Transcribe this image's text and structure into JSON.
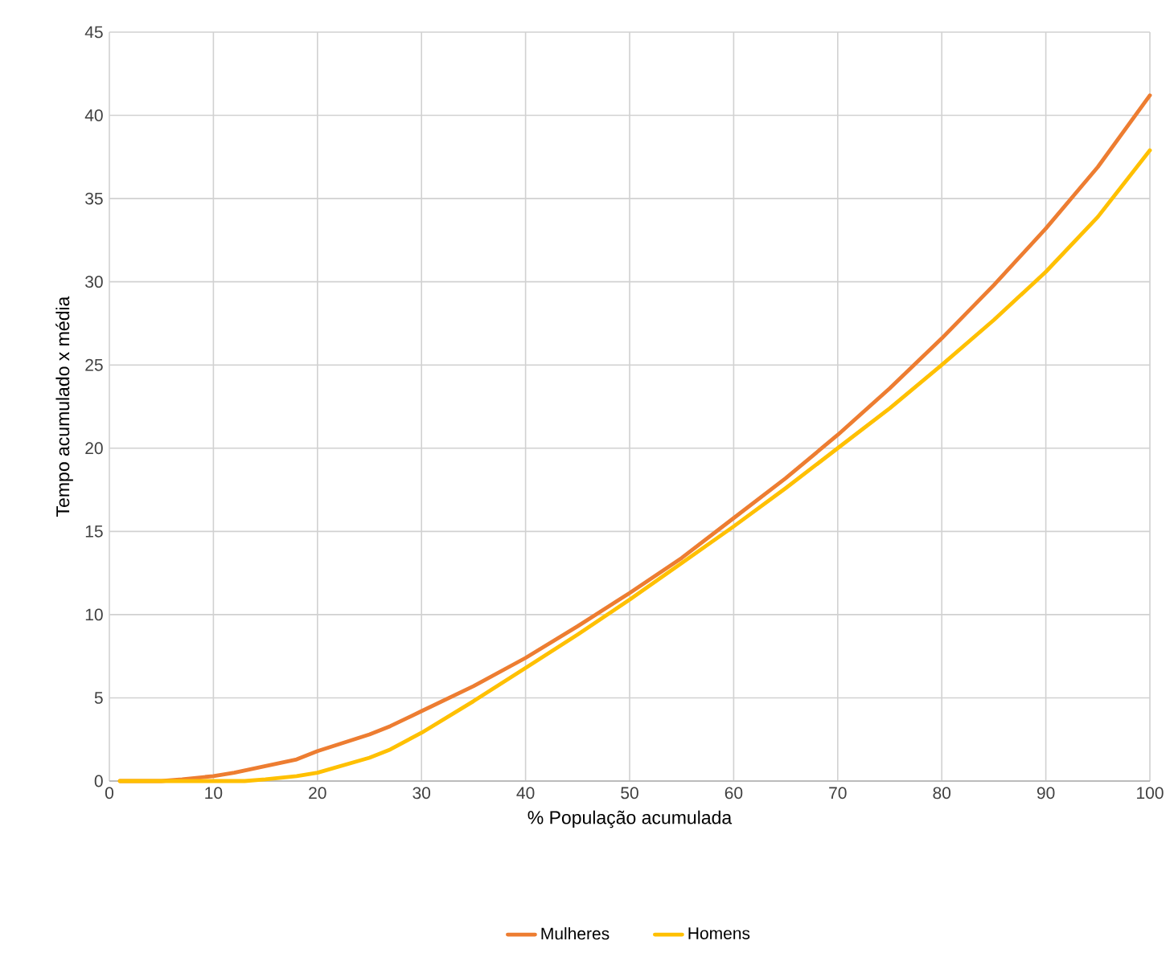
{
  "chart_data": {
    "type": "line",
    "xlabel": "% População acumulada",
    "ylabel": "Tempo acumulado x média",
    "xlim": [
      0,
      100
    ],
    "ylim": [
      0,
      45
    ],
    "xticks": [
      0,
      10,
      20,
      30,
      40,
      50,
      60,
      70,
      80,
      90,
      100
    ],
    "yticks": [
      0,
      5,
      10,
      15,
      20,
      25,
      30,
      35,
      40,
      45
    ],
    "grid": true,
    "legend": "bottom",
    "series": [
      {
        "name": "Mulheres",
        "color": "#ed7d31",
        "x": [
          1,
          5,
          7,
          10,
          12,
          15,
          18,
          20,
          25,
          27,
          30,
          35,
          40,
          45,
          50,
          55,
          60,
          65,
          70,
          75,
          80,
          85,
          90,
          95,
          100
        ],
        "values": [
          0,
          0,
          0.1,
          0.3,
          0.5,
          0.9,
          1.3,
          1.8,
          2.8,
          3.3,
          4.2,
          5.7,
          7.4,
          9.3,
          11.3,
          13.4,
          15.8,
          18.2,
          20.8,
          23.6,
          26.6,
          29.8,
          33.2,
          36.9,
          41.2
        ]
      },
      {
        "name": "Homens",
        "color": "#ffc000",
        "x": [
          1,
          5,
          10,
          13,
          15,
          18,
          20,
          25,
          27,
          30,
          35,
          40,
          45,
          50,
          55,
          60,
          65,
          70,
          75,
          80,
          85,
          90,
          95,
          100
        ],
        "values": [
          0,
          0,
          0,
          0,
          0.1,
          0.3,
          0.5,
          1.4,
          1.9,
          2.9,
          4.8,
          6.8,
          8.8,
          10.9,
          13.1,
          15.3,
          17.6,
          20.0,
          22.4,
          25.0,
          27.7,
          30.6,
          33.9,
          37.9
        ]
      }
    ]
  }
}
